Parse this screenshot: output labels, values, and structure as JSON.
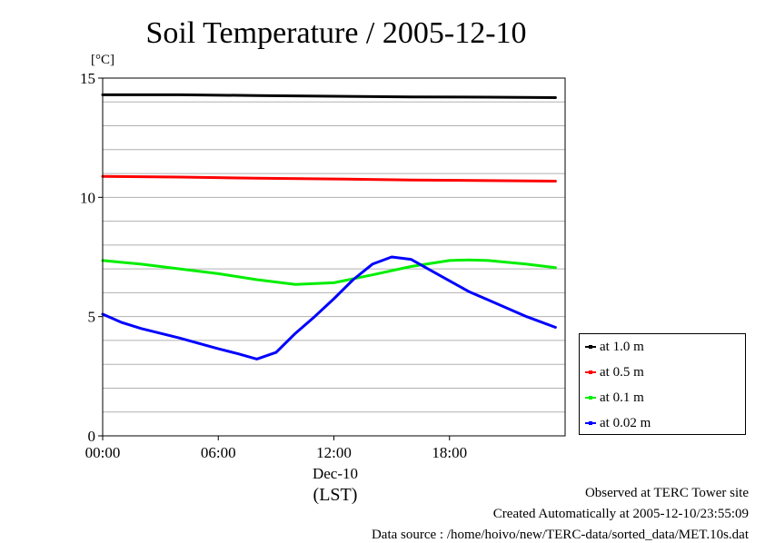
{
  "chart_data": {
    "type": "line",
    "title": "Soil Temperature / 2005-12-10",
    "ylabel": "[°C]",
    "xlabel": "(LST)",
    "x_date_label": "Dec-10",
    "ylim": [
      0,
      15
    ],
    "y_ticks": [
      0,
      5,
      10,
      15
    ],
    "xlim": [
      "00:00",
      "24:00"
    ],
    "x_tick_labels": [
      "00:00",
      "06:00",
      "12:00",
      "18:00"
    ],
    "grid": true,
    "legend_position": "right",
    "series": [
      {
        "name": "at 1.0 m",
        "color": "#000000",
        "x": [
          "00:00",
          "04:00",
          "08:00",
          "12:00",
          "16:00",
          "20:00",
          "23:30"
        ],
        "values": [
          14.3,
          14.3,
          14.27,
          14.24,
          14.21,
          14.2,
          14.18
        ]
      },
      {
        "name": "at 0.5 m",
        "color": "#ff0000",
        "x": [
          "00:00",
          "04:00",
          "08:00",
          "12:00",
          "16:00",
          "20:00",
          "23:30"
        ],
        "values": [
          10.88,
          10.85,
          10.8,
          10.77,
          10.73,
          10.7,
          10.68
        ]
      },
      {
        "name": "at 0.1 m",
        "color": "#00ee00",
        "x": [
          "00:00",
          "02:00",
          "04:00",
          "06:00",
          "08:00",
          "10:00",
          "12:00",
          "14:00",
          "16:00",
          "18:00",
          "19:00",
          "20:00",
          "22:00",
          "23:30"
        ],
        "values": [
          7.35,
          7.2,
          7.0,
          6.8,
          6.55,
          6.35,
          6.42,
          6.75,
          7.1,
          7.35,
          7.38,
          7.35,
          7.2,
          7.05
        ]
      },
      {
        "name": "at 0.02 m",
        "color": "#0000ff",
        "x": [
          "00:00",
          "01:00",
          "02:00",
          "04:00",
          "06:00",
          "07:00",
          "08:00",
          "09:00",
          "10:00",
          "11:00",
          "12:00",
          "13:00",
          "14:00",
          "15:00",
          "16:00",
          "17:00",
          "18:00",
          "19:00",
          "20:00",
          "22:00",
          "23:30"
        ],
        "values": [
          5.1,
          4.75,
          4.5,
          4.1,
          3.65,
          3.45,
          3.22,
          3.5,
          4.3,
          5.0,
          5.75,
          6.55,
          7.2,
          7.5,
          7.4,
          6.95,
          6.5,
          6.05,
          5.7,
          5.0,
          4.55
        ]
      }
    ]
  },
  "footer": {
    "observed": "Observed at TERC Tower site",
    "created": "Created Automatically at 2005-12-10/23:55:09",
    "source": "Data source : /home/hoivo/new/TERC-data/sorted_data/MET.10s.dat"
  }
}
